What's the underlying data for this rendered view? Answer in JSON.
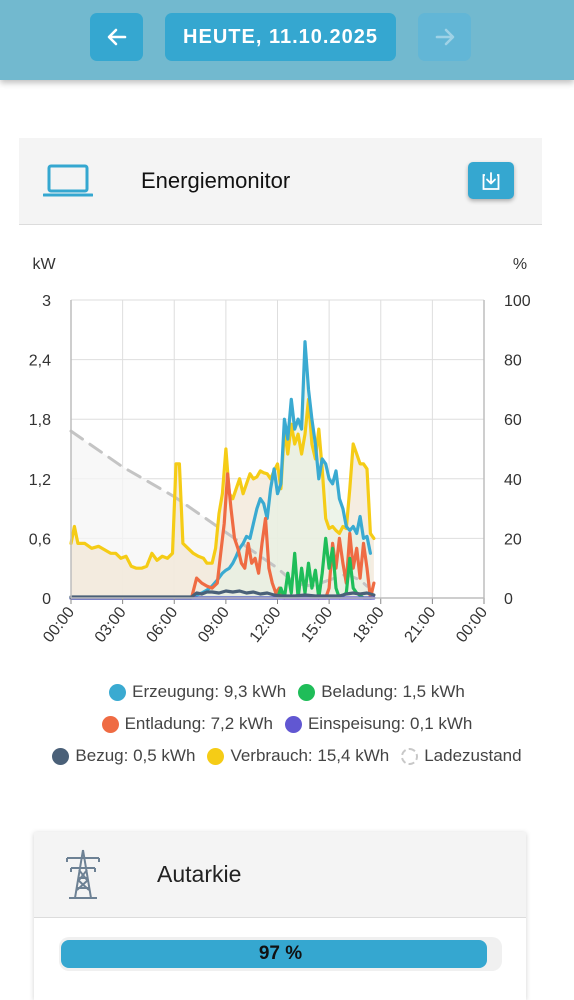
{
  "header": {
    "date_label": "HEUTE, 11.10.2025",
    "back_icon": "arrow-left-icon",
    "forward_icon": "arrow-right-icon",
    "bar_color": "#72b9cf",
    "button_color": "#35a7d0"
  },
  "energy_card": {
    "icon": "laptop-icon",
    "title": "Energiemonitor",
    "download_icon": "download-icon"
  },
  "chart_data": {
    "type": "line",
    "left_unit": "kW",
    "right_unit": "%",
    "y_ticks": [
      "3",
      "2,4",
      "1,8",
      "1,2",
      "0,6",
      "0"
    ],
    "y2_ticks": [
      "100",
      "80",
      "60",
      "40",
      "20",
      "0"
    ],
    "x_ticks": [
      "00:00",
      "03:00",
      "06:00",
      "09:00",
      "12:00",
      "15:00",
      "18:00",
      "21:00",
      "00:00"
    ],
    "ylim": [
      0,
      3
    ],
    "y2lim": [
      0,
      100
    ],
    "xlim": [
      0,
      24
    ],
    "grid": true,
    "series": [
      {
        "name": "Verbrauch",
        "color": "#f5cc16",
        "fill": "#f1e7d7",
        "points": [
          [
            0,
            0.55
          ],
          [
            0.2,
            0.72
          ],
          [
            0.4,
            0.55
          ],
          [
            0.8,
            0.55
          ],
          [
            1.2,
            0.5
          ],
          [
            1.6,
            0.52
          ],
          [
            2.0,
            0.48
          ],
          [
            2.3,
            0.45
          ],
          [
            2.6,
            0.45
          ],
          [
            2.9,
            0.4
          ],
          [
            3.2,
            0.42
          ],
          [
            3.5,
            0.32
          ],
          [
            3.8,
            0.3
          ],
          [
            4.1,
            0.3
          ],
          [
            4.4,
            0.32
          ],
          [
            4.7,
            0.45
          ],
          [
            5.0,
            0.38
          ],
          [
            5.3,
            0.42
          ],
          [
            5.6,
            0.4
          ],
          [
            5.9,
            0.45
          ],
          [
            6.1,
            1.35
          ],
          [
            6.3,
            1.35
          ],
          [
            6.5,
            0.55
          ],
          [
            6.8,
            0.5
          ],
          [
            7.1,
            0.45
          ],
          [
            7.4,
            0.42
          ],
          [
            7.7,
            0.4
          ],
          [
            7.9,
            0.35
          ],
          [
            8.2,
            0.35
          ],
          [
            8.4,
            0.5
          ],
          [
            8.6,
            0.85
          ],
          [
            8.8,
            1.05
          ],
          [
            9.0,
            1.5
          ],
          [
            9.2,
            1.05
          ],
          [
            9.4,
            1.0
          ],
          [
            9.6,
            1.1
          ],
          [
            9.8,
            1.2
          ],
          [
            10.0,
            1.05
          ],
          [
            10.2,
            1.15
          ],
          [
            10.4,
            1.25
          ],
          [
            10.6,
            1.2
          ],
          [
            10.8,
            1.22
          ],
          [
            11.0,
            1.28
          ],
          [
            11.2,
            1.26
          ],
          [
            11.4,
            1.25
          ],
          [
            11.6,
            1.2
          ],
          [
            11.8,
            1.28
          ],
          [
            12.0,
            1.35
          ],
          [
            12.2,
            1.1
          ],
          [
            12.4,
            1.7
          ],
          [
            12.6,
            1.45
          ],
          [
            12.8,
            1.75
          ],
          [
            13.0,
            1.55
          ],
          [
            13.2,
            1.65
          ],
          [
            13.4,
            1.45
          ],
          [
            13.6,
            1.65
          ],
          [
            13.8,
            2.0
          ],
          [
            14.0,
            1.55
          ],
          [
            14.2,
            1.4
          ],
          [
            14.4,
            1.7
          ],
          [
            14.6,
            1.3
          ],
          [
            14.8,
            0.8
          ],
          [
            15.0,
            0.7
          ],
          [
            15.2,
            0.72
          ],
          [
            15.4,
            0.68
          ],
          [
            15.6,
            0.65
          ],
          [
            15.8,
            0.72
          ],
          [
            16.0,
            0.7
          ],
          [
            16.2,
            1.1
          ],
          [
            16.4,
            1.55
          ],
          [
            16.6,
            1.45
          ],
          [
            16.8,
            1.35
          ],
          [
            17.0,
            1.35
          ],
          [
            17.2,
            1.3
          ],
          [
            17.4,
            0.65
          ],
          [
            17.6,
            0.6
          ]
        ]
      },
      {
        "name": "Erzeugung",
        "color": "#3aaad1",
        "fill": "#e7f0e3",
        "points": [
          [
            0,
            0
          ],
          [
            7.0,
            0
          ],
          [
            7.3,
            0.03
          ],
          [
            7.6,
            0.05
          ],
          [
            7.9,
            0.08
          ],
          [
            8.2,
            0.12
          ],
          [
            8.5,
            0.18
          ],
          [
            8.8,
            0.25
          ],
          [
            9.0,
            0.28
          ],
          [
            9.2,
            0.3
          ],
          [
            9.4,
            0.35
          ],
          [
            9.6,
            0.42
          ],
          [
            9.8,
            0.5
          ],
          [
            10.0,
            0.55
          ],
          [
            10.2,
            0.62
          ],
          [
            10.4,
            0.6
          ],
          [
            10.6,
            0.75
          ],
          [
            10.8,
            0.9
          ],
          [
            11.0,
            1.0
          ],
          [
            11.2,
            0.95
          ],
          [
            11.4,
            0.8
          ],
          [
            11.6,
            1.1
          ],
          [
            11.8,
            1.3
          ],
          [
            12.0,
            1.05
          ],
          [
            12.2,
            1.15
          ],
          [
            12.4,
            1.8
          ],
          [
            12.6,
            1.6
          ],
          [
            12.8,
            2.0
          ],
          [
            13.0,
            1.7
          ],
          [
            13.2,
            1.8
          ],
          [
            13.4,
            1.7
          ],
          [
            13.6,
            2.58
          ],
          [
            13.8,
            2.1
          ],
          [
            14.0,
            1.8
          ],
          [
            14.2,
            1.55
          ],
          [
            14.4,
            1.2
          ],
          [
            14.6,
            1.4
          ],
          [
            14.8,
            1.35
          ],
          [
            15.0,
            1.2
          ],
          [
            15.2,
            1.15
          ],
          [
            15.4,
            1.28
          ],
          [
            15.6,
            1.0
          ],
          [
            15.8,
            0.9
          ],
          [
            16.0,
            0.72
          ],
          [
            16.2,
            0.68
          ],
          [
            16.4,
            0.72
          ],
          [
            16.6,
            0.65
          ],
          [
            16.8,
            0.82
          ],
          [
            17.0,
            0.6
          ],
          [
            17.2,
            0.62
          ],
          [
            17.4,
            0.45
          ]
        ]
      },
      {
        "name": "Beladung",
        "color": "#1fbd59",
        "fill": "",
        "points": [
          [
            0,
            0
          ],
          [
            12.0,
            0
          ],
          [
            12.2,
            0.1
          ],
          [
            12.4,
            0
          ],
          [
            12.6,
            0.25
          ],
          [
            12.8,
            0.05
          ],
          [
            13.0,
            0.45
          ],
          [
            13.2,
            0
          ],
          [
            13.4,
            0.3
          ],
          [
            13.6,
            0.05
          ],
          [
            13.8,
            0.35
          ],
          [
            14.0,
            0.1
          ],
          [
            14.2,
            0.28
          ],
          [
            14.4,
            0
          ],
          [
            14.6,
            0.25
          ],
          [
            14.8,
            0.6
          ],
          [
            15.0,
            0.3
          ],
          [
            15.2,
            0.5
          ],
          [
            15.4,
            0.1
          ],
          [
            15.6,
            0
          ],
          [
            16.0,
            0.05
          ],
          [
            16.2,
            0.4
          ],
          [
            16.4,
            0.1
          ],
          [
            16.6,
            0.05
          ],
          [
            17.0,
            0
          ],
          [
            17.5,
            0
          ]
        ]
      },
      {
        "name": "Entladung",
        "color": "#ef6b43",
        "fill": "",
        "points": [
          [
            0,
            0
          ],
          [
            7.0,
            0
          ],
          [
            7.3,
            0.2
          ],
          [
            7.6,
            0.15
          ],
          [
            7.9,
            0.12
          ],
          [
            8.2,
            0.1
          ],
          [
            8.5,
            0.15
          ],
          [
            8.7,
            0.45
          ],
          [
            8.9,
            0.75
          ],
          [
            9.1,
            1.25
          ],
          [
            9.3,
            0.9
          ],
          [
            9.5,
            0.6
          ],
          [
            9.7,
            0.5
          ],
          [
            9.9,
            0.35
          ],
          [
            10.1,
            0.3
          ],
          [
            10.3,
            0.55
          ],
          [
            10.5,
            0.35
          ],
          [
            10.7,
            0.4
          ],
          [
            10.9,
            0.25
          ],
          [
            11.1,
            0.55
          ],
          [
            11.3,
            0.8
          ],
          [
            11.5,
            0.3
          ],
          [
            11.7,
            0.15
          ],
          [
            11.9,
            0.05
          ],
          [
            12.1,
            0.1
          ],
          [
            12.3,
            0
          ],
          [
            14.8,
            0
          ],
          [
            15.0,
            0.1
          ],
          [
            15.2,
            0.55
          ],
          [
            15.4,
            0.3
          ],
          [
            15.6,
            0.6
          ],
          [
            15.8,
            0.35
          ],
          [
            16.0,
            0.15
          ],
          [
            16.2,
            0.65
          ],
          [
            16.4,
            0.3
          ],
          [
            16.6,
            0.5
          ],
          [
            16.8,
            0.2
          ],
          [
            17.0,
            0.55
          ],
          [
            17.2,
            0.3
          ],
          [
            17.4,
            0
          ],
          [
            17.6,
            0.15
          ]
        ]
      },
      {
        "name": "Einspeisung",
        "color": "#6157d2",
        "fill": "",
        "points": [
          [
            0,
            0
          ],
          [
            17.6,
            0
          ]
        ]
      },
      {
        "name": "Bezug",
        "color": "#4a6078",
        "fill": "",
        "points": [
          [
            0,
            0.01
          ],
          [
            7.0,
            0.01
          ],
          [
            7.3,
            0.05
          ],
          [
            7.6,
            0.04
          ],
          [
            7.9,
            0.06
          ],
          [
            8.2,
            0.06
          ],
          [
            8.6,
            0.05
          ],
          [
            9.0,
            0.07
          ],
          [
            9.4,
            0.06
          ],
          [
            9.8,
            0.07
          ],
          [
            10.2,
            0.05
          ],
          [
            10.6,
            0.06
          ],
          [
            11.0,
            0.04
          ],
          [
            11.4,
            0.05
          ],
          [
            11.8,
            0.03
          ],
          [
            12.2,
            0.02
          ],
          [
            13.0,
            0.02
          ],
          [
            13.6,
            0.03
          ],
          [
            14.2,
            0.02
          ],
          [
            15.0,
            0.02
          ],
          [
            15.6,
            0.02
          ],
          [
            16.0,
            0.04
          ],
          [
            16.4,
            0.05
          ],
          [
            16.8,
            0.04
          ],
          [
            17.2,
            0.05
          ],
          [
            17.6,
            0.03
          ]
        ]
      },
      {
        "name": "Ladezustand",
        "color": "#c4c4c4",
        "fill": "#f5f5f5",
        "axis": "right",
        "points": [
          [
            0,
            56
          ],
          [
            3.0,
            44
          ],
          [
            6.0,
            34
          ],
          [
            9.0,
            22
          ],
          [
            12.0,
            10
          ],
          [
            13.0,
            5
          ],
          [
            14.0,
            4
          ],
          [
            15.0,
            6
          ],
          [
            16.0,
            8
          ],
          [
            16.8,
            6
          ],
          [
            17.2,
            4
          ]
        ]
      }
    ]
  },
  "legend": {
    "rows": [
      [
        {
          "label": "Erzeugung: 9,3 kWh",
          "color": "#3aaad1"
        },
        {
          "label": "Beladung: 1,5 kWh",
          "color": "#1fbd59"
        }
      ],
      [
        {
          "label": "Entladung: 7,2 kWh",
          "color": "#ef6b43"
        },
        {
          "label": "Einspeisung: 0,1 kWh",
          "color": "#6157d2"
        }
      ],
      [
        {
          "label": "Bezug: 0,5 kWh",
          "color": "#4a6078"
        },
        {
          "label": "Verbrauch: 15,4 kWh",
          "color": "#f5cc16"
        },
        {
          "label": "Ladezustand",
          "color": "#c4c4c4",
          "dashed": true
        }
      ]
    ]
  },
  "autarkie_card": {
    "icon": "power-tower-icon",
    "title": "Autarkie",
    "progress_label": "97 %",
    "progress_value": 0.97
  }
}
